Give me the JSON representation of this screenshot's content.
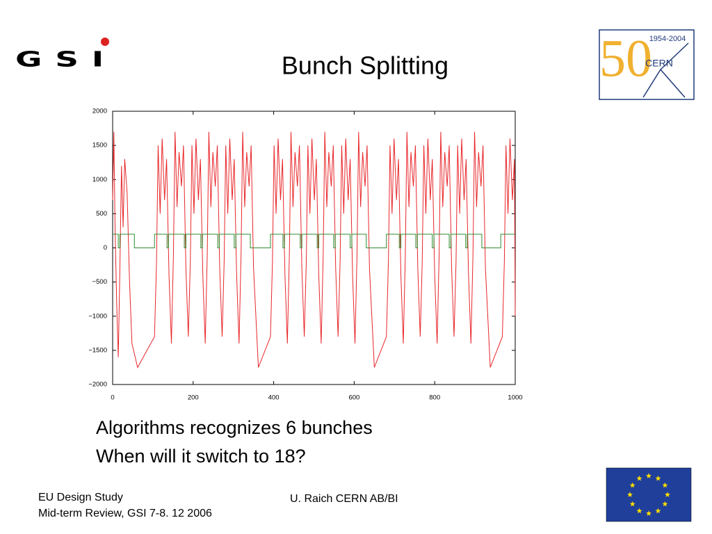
{
  "slide": {
    "title": "Bunch Splitting",
    "body": [
      "Algorithms recognizes 6 bunches",
      "When will it switch to 18?"
    ],
    "footer_left": [
      "EU Design Study",
      "Mid-term Review, GSI 7-8. 12 2006"
    ],
    "footer_center": "U. Raich CERN AB/BI",
    "gsi_logo": "GSI",
    "cern_logo": {
      "number": "50",
      "years": "1954-2004",
      "name": "CERN"
    }
  },
  "chart_data": {
    "type": "line",
    "xlim": [
      0,
      1000
    ],
    "xticks": [
      0,
      200,
      400,
      600,
      800,
      1000
    ],
    "ylim": [
      -2000,
      2000
    ],
    "yticks": [
      {
        "value": -2000,
        "label": "−2000"
      },
      {
        "value": -1500,
        "label": "−1500"
      },
      {
        "value": -1000,
        "label": "−1000"
      },
      {
        "value": -500,
        "label": "−500"
      },
      0,
      500,
      1000,
      1500,
      2000
    ],
    "grid": false,
    "series": [
      {
        "color": "#e8262a",
        "x": [
          0,
          3,
          6,
          10,
          14,
          18,
          22,
          26,
          30,
          36,
          42,
          48,
          62,
          104,
          109,
          113,
          118,
          123,
          129,
          134,
          140,
          146,
          151,
          155,
          160,
          165,
          171,
          176,
          182,
          188,
          193,
          197,
          202,
          207,
          213,
          218,
          224,
          230,
          235,
          239,
          244,
          249,
          255,
          260,
          266,
          272,
          277,
          281,
          286,
          291,
          297,
          302,
          308,
          314,
          319,
          323,
          328,
          333,
          339,
          344,
          350,
          362,
          392,
          397,
          401,
          406,
          411,
          417,
          422,
          428,
          434,
          439,
          443,
          448,
          453,
          459,
          464,
          470,
          476,
          481,
          485,
          490,
          495,
          501,
          506,
          512,
          518,
          523,
          527,
          532,
          537,
          543,
          548,
          554,
          560,
          565,
          569,
          574,
          579,
          585,
          590,
          596,
          602,
          607,
          611,
          616,
          621,
          627,
          632,
          638,
          650,
          680,
          685,
          689,
          694,
          699,
          705,
          710,
          716,
          722,
          727,
          731,
          736,
          741,
          747,
          752,
          758,
          764,
          769,
          773,
          778,
          783,
          789,
          794,
          800,
          806,
          811,
          815,
          820,
          825,
          831,
          836,
          842,
          848,
          853,
          857,
          862,
          867,
          873,
          878,
          884,
          890,
          895,
          899,
          904,
          909,
          915,
          920,
          926,
          938,
          968,
          973,
          977,
          982,
          987,
          993,
          998,
          1000
        ],
        "values": [
          700,
          1700,
          300,
          -800,
          -1600,
          -300,
          1200,
          300,
          1300,
          800,
          -500,
          -1400,
          -1750,
          -1300,
          -200,
          1500,
          500,
          1600,
          700,
          1300,
          -400,
          -1400,
          -100,
          1700,
          600,
          1400,
          900,
          1500,
          -300,
          -1300,
          -200,
          1500,
          500,
          1600,
          700,
          1300,
          -400,
          -1400,
          -100,
          1700,
          600,
          1400,
          900,
          1500,
          -300,
          -1300,
          -200,
          1500,
          500,
          1600,
          700,
          1300,
          -400,
          -1400,
          -100,
          1700,
          600,
          1400,
          900,
          1500,
          -300,
          -1750,
          -1300,
          -200,
          1500,
          500,
          1600,
          700,
          1300,
          -400,
          -1400,
          -100,
          1700,
          600,
          1400,
          900,
          1500,
          -300,
          -1300,
          -200,
          1500,
          500,
          1600,
          700,
          1300,
          -400,
          -1400,
          -100,
          1700,
          600,
          1400,
          900,
          1500,
          -300,
          -1300,
          -200,
          1500,
          500,
          1600,
          700,
          1300,
          -400,
          -1400,
          -100,
          1700,
          600,
          1400,
          900,
          1500,
          -300,
          -1750,
          -1300,
          -200,
          1500,
          500,
          1600,
          700,
          1300,
          -400,
          -1400,
          -100,
          1700,
          600,
          1400,
          900,
          1500,
          -300,
          -1300,
          -200,
          1500,
          500,
          1600,
          700,
          1300,
          -400,
          -1400,
          -100,
          1700,
          600,
          1400,
          900,
          1500,
          -300,
          -1300,
          -200,
          1500,
          500,
          1600,
          700,
          1300,
          -400,
          -1400,
          -100,
          1700,
          600,
          1400,
          900,
          1500,
          -300,
          -1750,
          -1300,
          -200,
          1500,
          500,
          1600,
          700,
          1300,
          -1000
        ]
      },
      {
        "color": "#2e8b2e",
        "x": [
          0,
          14,
          14,
          18,
          18,
          54,
          54,
          104,
          104,
          135,
          135,
          139,
          139,
          178,
          178,
          182,
          182,
          219,
          219,
          223,
          223,
          261,
          261,
          265,
          265,
          302,
          302,
          306,
          306,
          342,
          342,
          392,
          392,
          423,
          423,
          427,
          427,
          466,
          466,
          470,
          470,
          508,
          508,
          512,
          512,
          549,
          549,
          553,
          553,
          590,
          590,
          594,
          594,
          630,
          630,
          680,
          680,
          712,
          712,
          716,
          716,
          753,
          753,
          757,
          757,
          794,
          794,
          798,
          798,
          836,
          836,
          840,
          840,
          877,
          877,
          881,
          881,
          917,
          917,
          964,
          964,
          1000
        ],
        "values": [
          200,
          200,
          0,
          0,
          200,
          200,
          0,
          0,
          200,
          200,
          0,
          0,
          200,
          200,
          0,
          0,
          200,
          200,
          0,
          0,
          200,
          200,
          0,
          0,
          200,
          200,
          0,
          0,
          200,
          200,
          0,
          0,
          200,
          200,
          0,
          0,
          200,
          200,
          0,
          0,
          200,
          200,
          0,
          0,
          200,
          200,
          0,
          0,
          200,
          200,
          0,
          0,
          200,
          200,
          0,
          0,
          200,
          200,
          0,
          0,
          200,
          200,
          0,
          0,
          200,
          200,
          0,
          0,
          200,
          200,
          0,
          0,
          200,
          200,
          0,
          0,
          200,
          200,
          0,
          0,
          200,
          200
        ]
      }
    ]
  }
}
